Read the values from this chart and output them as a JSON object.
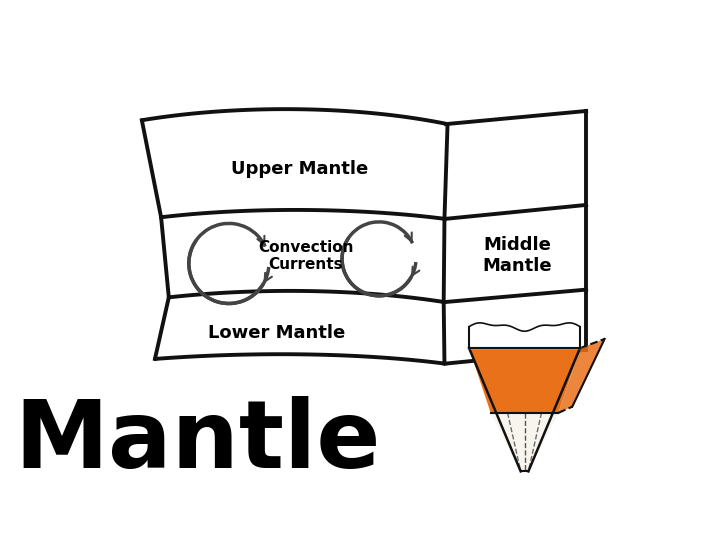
{
  "background_color": "#ffffff",
  "upper_mantle_label": "Upper Mantle",
  "lower_mantle_label": "Lower Mantle",
  "middle_mantle_label": "Middle\nMantle",
  "convection_label": "Convection\nCurrents",
  "mantle_label": "Mantle",
  "line_color": "#111111",
  "line_width": 2.8,
  "arrow_color": "#444444",
  "orange_color": "#E8711A",
  "label_fontsize": 13,
  "convection_fontsize": 11,
  "mantle_fontsize": 68
}
